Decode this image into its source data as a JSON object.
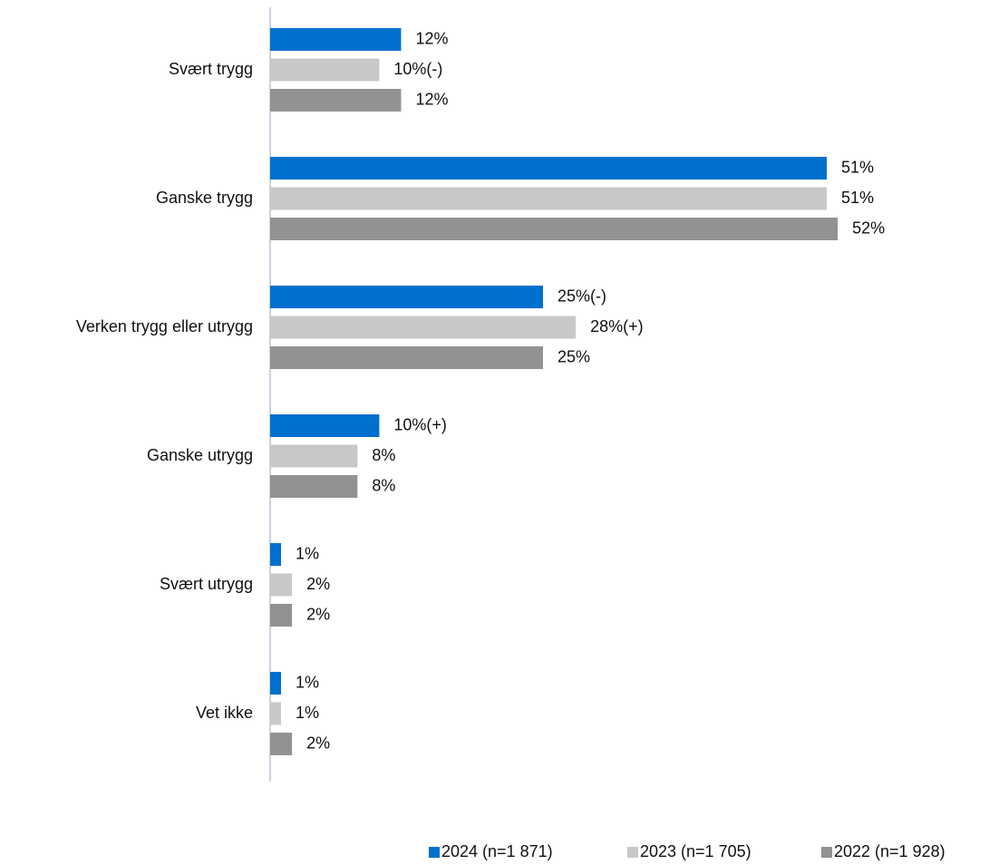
{
  "chart_data": {
    "type": "bar",
    "orientation": "horizontal",
    "categories": [
      "Svært trygg",
      "Ganske trygg",
      "Verken trygg eller utrygg",
      "Ganske utrygg",
      "Svært utrygg",
      "Vet ikke"
    ],
    "series": [
      {
        "name": "2024 (n=1 871)",
        "color": "#0070ce",
        "values": [
          12,
          51,
          25,
          10,
          1,
          1
        ],
        "value_labels": [
          "12%",
          "51%",
          "25%(-)",
          "10%(+)",
          "1%",
          "1%"
        ]
      },
      {
        "name": "2023 (n=1 705)",
        "color": "#c8c8c8",
        "values": [
          10,
          51,
          28,
          8,
          2,
          1
        ],
        "value_labels": [
          "10%(-)",
          "51%",
          "28%(+)",
          "8%",
          "2%",
          "1%"
        ]
      },
      {
        "name": "2022 (n=1 928)",
        "color": "#929292",
        "values": [
          12,
          52,
          25,
          8,
          2,
          2
        ],
        "value_labels": [
          "12%",
          "52%",
          "25%",
          "8%",
          "2%",
          "2%"
        ]
      }
    ],
    "legend": "bottom-right"
  }
}
